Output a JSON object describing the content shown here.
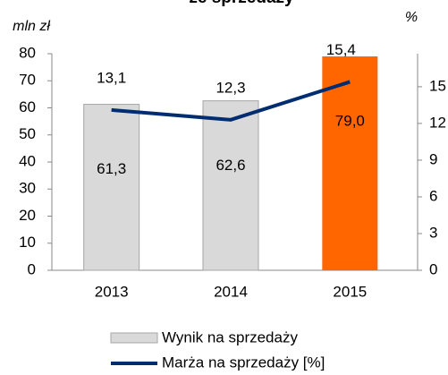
{
  "chart_data": {
    "type": "bar_line",
    "title": "ze sprzedaży",
    "y_label": "mln zł",
    "y2_label": "%",
    "categories": [
      "2013",
      "2014",
      "2015"
    ],
    "series": [
      {
        "name": "Wynik na sprzedaży",
        "type": "bar",
        "colors": [
          "#d9d9d9",
          "#d9d9d9",
          "#ff6600"
        ],
        "values": [
          61.3,
          62.6,
          79.0
        ],
        "value_labels": [
          "61,3",
          "62,6",
          "79,0"
        ]
      },
      {
        "name": "Marża na sprzedaży [%]",
        "type": "line",
        "axis": "y2",
        "color": "#002d72",
        "values": [
          13.1,
          12.3,
          15.4
        ],
        "value_labels": [
          "13,1",
          "12,3",
          "15,4"
        ]
      }
    ],
    "ylim": [
      0,
      80
    ],
    "yticks": [
      0,
      10,
      20,
      30,
      40,
      50,
      60,
      70,
      80
    ],
    "y2lim": [
      0,
      17.7
    ],
    "y2ticks": [
      0,
      3,
      6,
      9,
      12,
      15
    ],
    "legend": "bottom"
  }
}
